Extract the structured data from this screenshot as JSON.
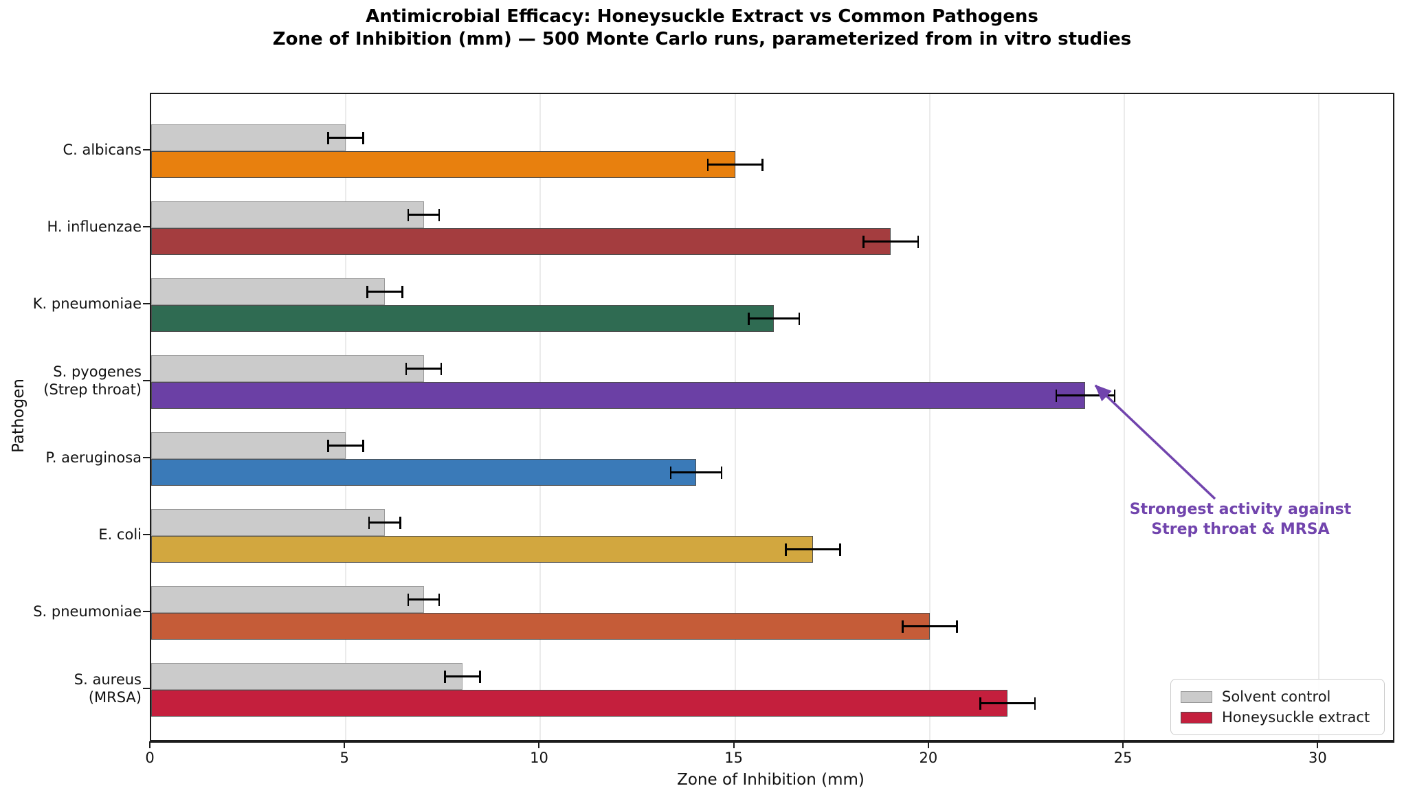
{
  "header": {
    "title": "Antimicrobial Efficacy: Honeysuckle Extract vs Common Pathogens",
    "subtitle": "Zone of Inhibition (mm) — 500 Monte Carlo runs, parameterized from in vitro studies"
  },
  "chart_data": {
    "type": "bar",
    "orientation": "horizontal",
    "xlabel": "Zone of Inhibition (mm)",
    "ylabel": "Pathogen",
    "xlim": [
      0,
      31.9
    ],
    "xticks": [
      0,
      5,
      10,
      15,
      20,
      25,
      30
    ],
    "grid": true,
    "legend_position": "lower right",
    "categories": [
      {
        "lines": [
          "C. albicans"
        ]
      },
      {
        "lines": [
          "H. influenzae"
        ]
      },
      {
        "lines": [
          "K. pneumoniae"
        ]
      },
      {
        "lines": [
          "S. pyogenes",
          "(Strep throat)"
        ]
      },
      {
        "lines": [
          "P. aeruginosa"
        ]
      },
      {
        "lines": [
          "E. coli"
        ]
      },
      {
        "lines": [
          "S. pneumoniae"
        ]
      },
      {
        "lines": [
          "S. aureus",
          "(MRSA)"
        ]
      }
    ],
    "series": [
      {
        "name": "Solvent control",
        "color": "#cbcbcb",
        "edge_color": "#9a9a9a",
        "values": [
          5.0,
          7.0,
          6.0,
          7.0,
          5.0,
          6.0,
          7.0,
          8.0
        ],
        "errors": [
          0.45,
          0.4,
          0.45,
          0.45,
          0.45,
          0.4,
          0.4,
          0.45
        ]
      },
      {
        "name": "Honeysuckle extract",
        "colors": [
          "#e8800e",
          "#a43d3f",
          "#2f6b52",
          "#6b40a5",
          "#3a7ab8",
          "#d2a73f",
          "#c55c38",
          "#c41f3d"
        ],
        "edge_color": "#4d4d4d",
        "values": [
          15.0,
          19.0,
          16.0,
          24.0,
          14.0,
          17.0,
          20.0,
          22.0
        ],
        "errors": [
          0.7,
          0.7,
          0.65,
          0.75,
          0.65,
          0.7,
          0.7,
          0.7
        ]
      }
    ],
    "annotation": {
      "lines": [
        "Strongest activity against",
        "Strep throat & MRSA"
      ],
      "color": "#7144ad",
      "points_to_category": "S. pyogenes (Strep throat)",
      "points_to_value_mm": 24.0
    }
  },
  "legend": {
    "items": [
      {
        "label": "Solvent control",
        "color": "#cbcbcb",
        "edge": "#9a9a9a"
      },
      {
        "label": "Honeysuckle extract",
        "color": "#c41f3d",
        "edge": "#4d4d4d"
      }
    ]
  }
}
